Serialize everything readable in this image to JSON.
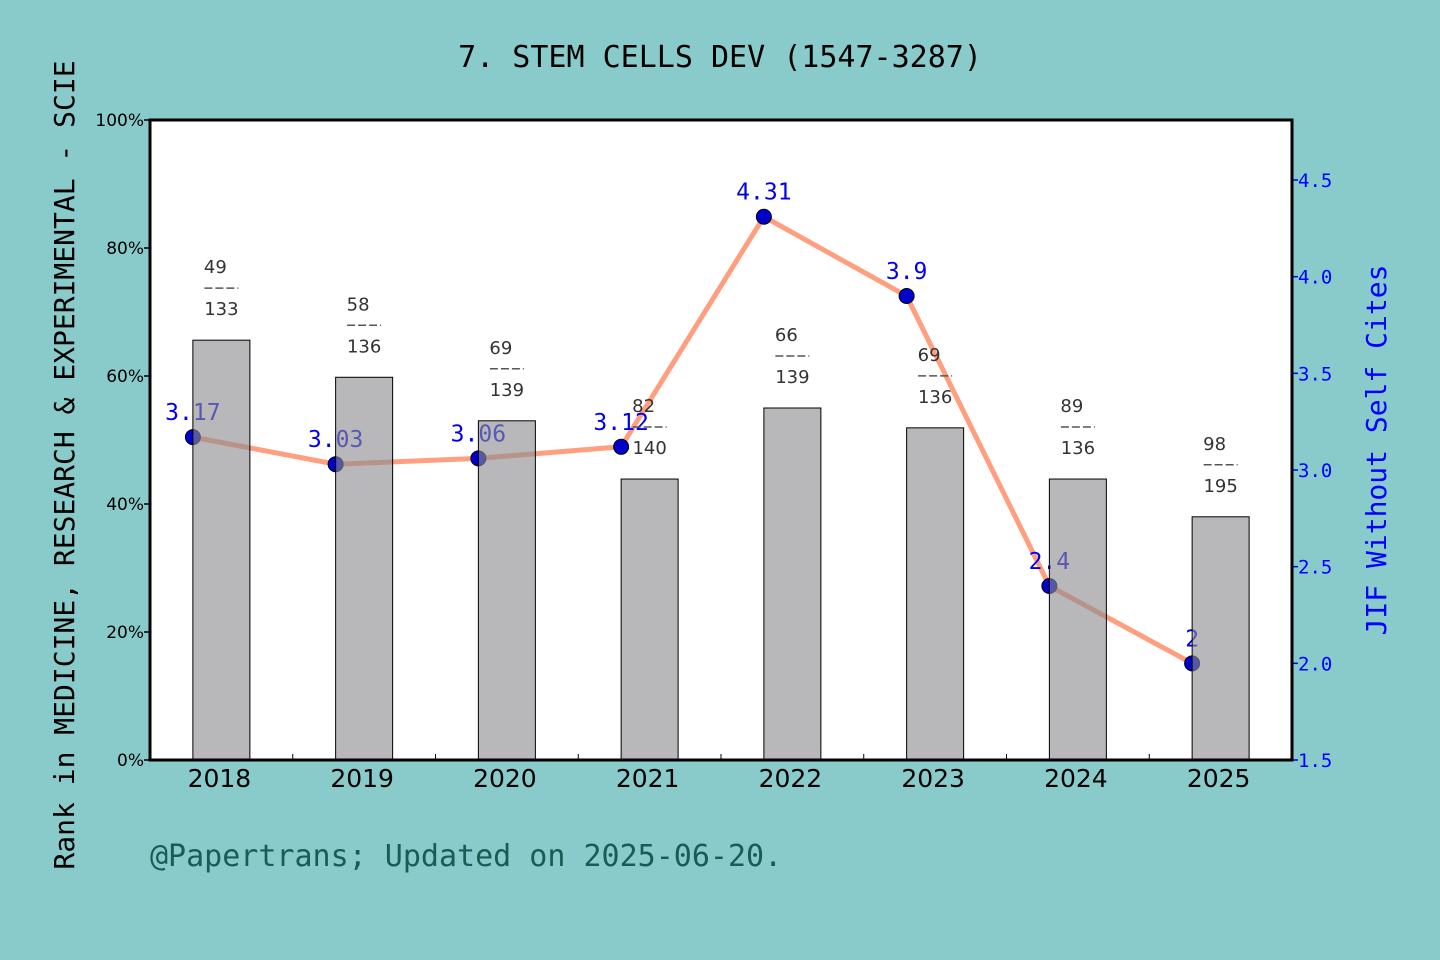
{
  "chart_data": {
    "type": "bar",
    "title": "7. STEM CELLS DEV (1547-3287)",
    "ylabel": "Rank in MEDICINE, RESEARCH & EXPERIMENTAL - SCIE",
    "y2label": "JIF Without Self Cites",
    "footer": "@Papertrans; Updated on 2025-06-20.",
    "categories": [
      "2018",
      "2019",
      "2020",
      "2021",
      "2022",
      "2023",
      "2024",
      "2025"
    ],
    "ylim": [
      0,
      100
    ],
    "yticks": [
      "0%",
      "20%",
      "40%",
      "60%",
      "80%",
      "100%"
    ],
    "y2lim": [
      1.5,
      4.8
    ],
    "y2ticks": [
      "1.5",
      "2.0",
      "2.5",
      "3.0",
      "3.5",
      "4.0",
      "4.5"
    ],
    "series": [
      {
        "type": "bar",
        "values": [
          65.6,
          59.8,
          53.0,
          43.9,
          55.0,
          51.9,
          43.9,
          38.0
        ],
        "rank": [
          "49",
          "58",
          "69",
          "82",
          "66",
          "69",
          "89",
          "98"
        ],
        "total": [
          "133",
          "136",
          "139",
          "140",
          "139",
          "136",
          "136",
          "195"
        ],
        "color": "#b8b9ba"
      },
      {
        "type": "line",
        "axis": "right",
        "values": [
          3.17,
          3.03,
          3.06,
          3.12,
          4.31,
          3.9,
          2.4,
          2
        ],
        "labels": [
          "3.17",
          "3.03",
          "3.06",
          "3.12",
          "4.31",
          "3.9",
          "2.4",
          "2"
        ],
        "line_color": "#ff9f7f",
        "marker_color": "#0000cc"
      }
    ],
    "colors": {
      "background": "#88cbca",
      "right_axis": "#0000ff",
      "footer": "#1a5c55"
    }
  }
}
